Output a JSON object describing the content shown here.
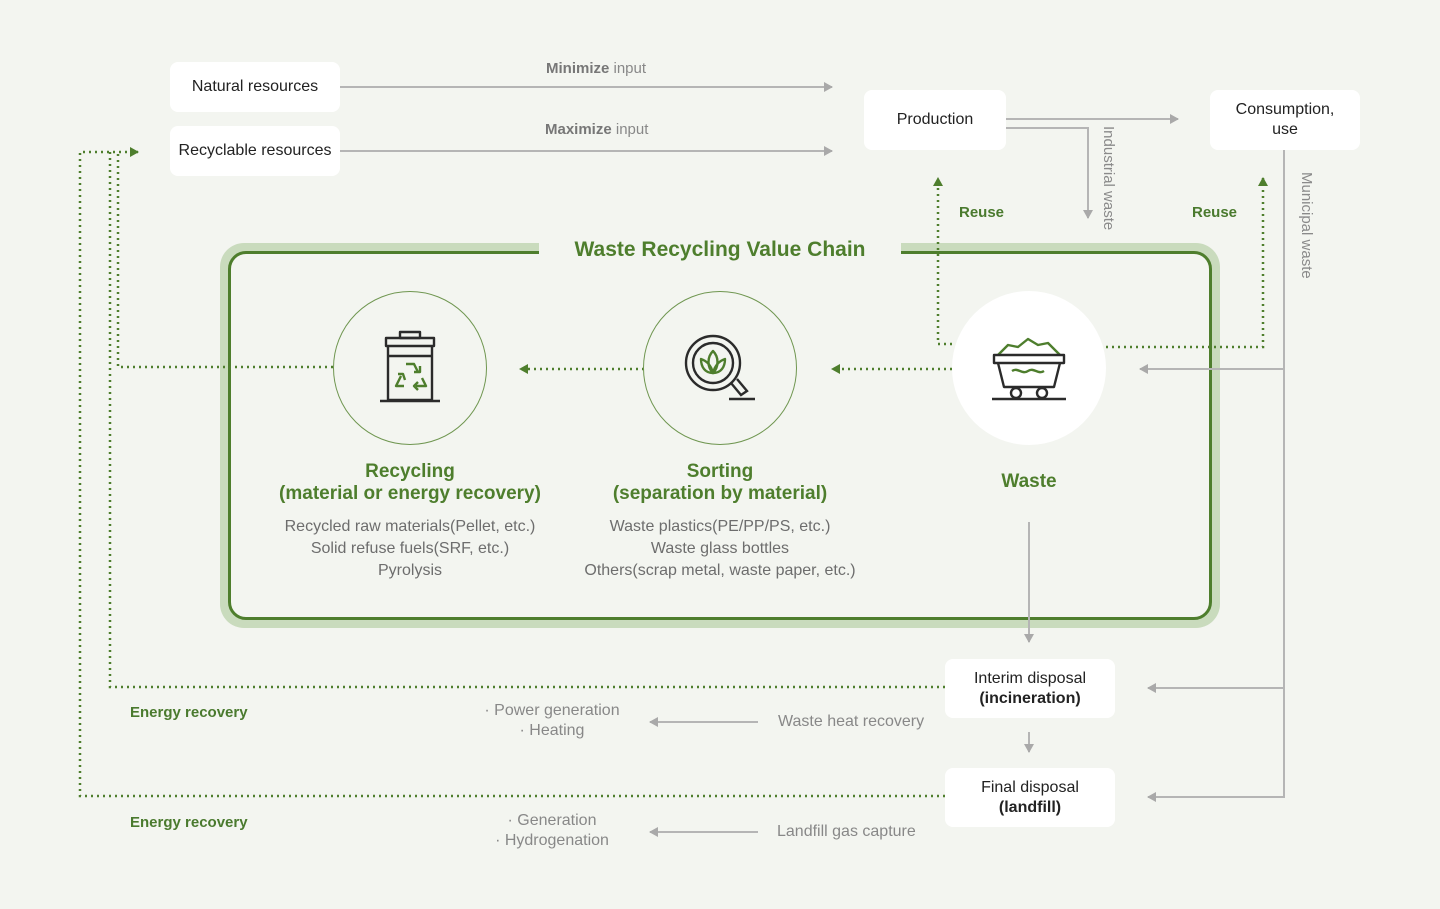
{
  "inputs": {
    "natural": "Natural resources",
    "recyclable": "Recyclable resources",
    "minimize_bold": "Minimize",
    "minimize_rest": " input",
    "maximize_bold": "Maximize",
    "maximize_rest": " input"
  },
  "production": "Production",
  "consumption": {
    "line1": "Consumption,",
    "line2": "use"
  },
  "reuse_left": "Reuse",
  "reuse_right": "Reuse",
  "industrial_waste": "Industrial waste",
  "municipal_waste": "Municipal waste",
  "value_chain": {
    "title": "Waste Recycling Value Chain",
    "recycling": {
      "title1": "Recycling",
      "title2": "(material or energy recovery)",
      "items": [
        "Recycled raw materials(Pellet, etc.)",
        "Solid refuse fuels(SRF, etc.)",
        "Pyrolysis"
      ],
      "icon": "recycle-bin-icon"
    },
    "sorting": {
      "title1": "Sorting",
      "title2": "(separation by material)",
      "items": [
        "Waste plastics(PE/PP/PS, etc.)",
        "Waste glass bottles",
        "Others(scrap metal, waste paper, etc.)"
      ],
      "icon": "magnifier-leaf-icon"
    },
    "waste": {
      "title": "Waste",
      "icon": "waste-cart-icon"
    }
  },
  "interim": {
    "line1": "Interim disposal",
    "line2": "(incineration)"
  },
  "final": {
    "line1": "Final disposal",
    "line2": "(landfill)"
  },
  "energy_recovery_1": "Energy recovery",
  "energy_recovery_2": "Energy recovery",
  "heat": {
    "label": "Waste heat recovery",
    "uses": [
      "· Power generation",
      "· Heating"
    ]
  },
  "gas": {
    "label": "Landfill gas capture",
    "uses": [
      "· Generation",
      "· Hydrogenation"
    ]
  },
  "colors": {
    "green": "#4e7e2d",
    "light_green": "#c9dbbd",
    "gray_line": "#b5b5b5",
    "background": "#f3f5f0"
  }
}
